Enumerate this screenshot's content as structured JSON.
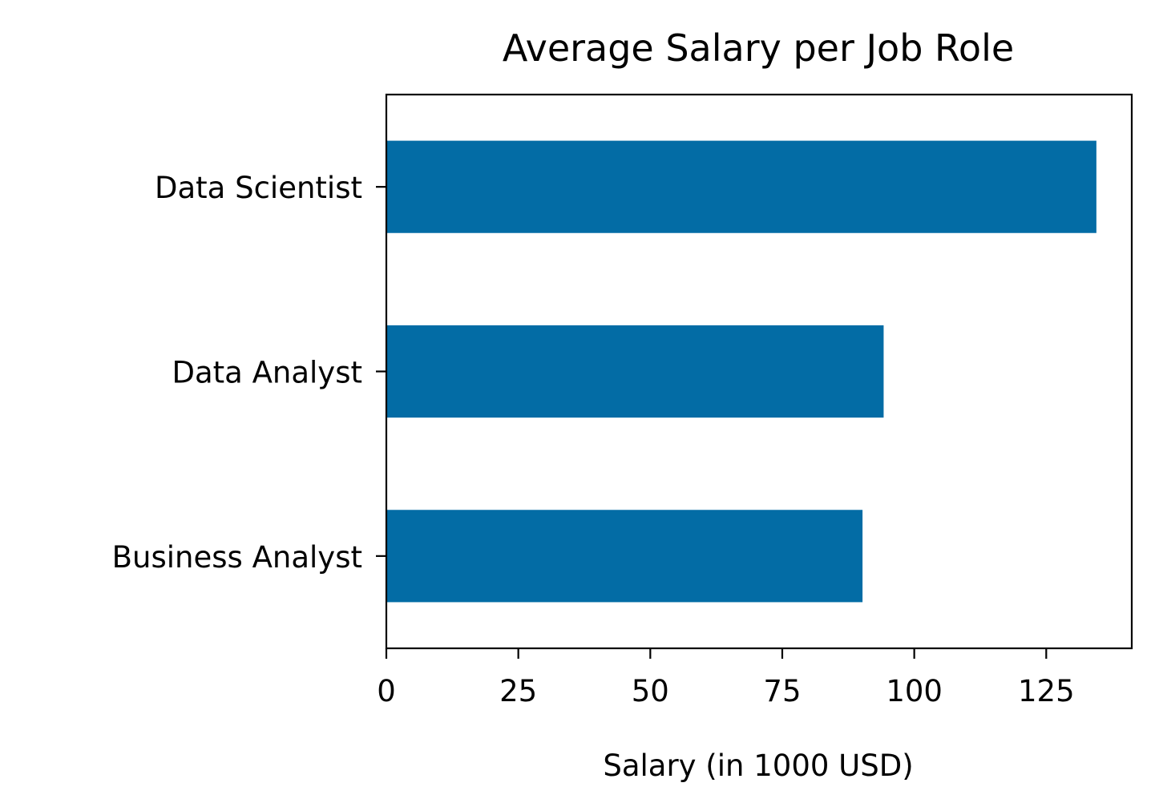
{
  "chart_data": {
    "type": "bar",
    "orientation": "horizontal",
    "title": "Average Salary per Job Role",
    "xlabel": "Salary (in 1000 USD)",
    "ylabel": "",
    "categories": [
      "Business Analyst",
      "Data Analyst",
      "Data Scientist"
    ],
    "values": [
      90.2,
      94.2,
      134.5
    ],
    "xlim": [
      0,
      141.2
    ],
    "xticks": [
      0,
      25,
      50,
      75,
      100,
      125
    ],
    "xtick_labels": [
      "0",
      "25",
      "50",
      "75",
      "100",
      "125"
    ],
    "bar_color": "#036ca5",
    "grid": false,
    "legend": "none"
  }
}
